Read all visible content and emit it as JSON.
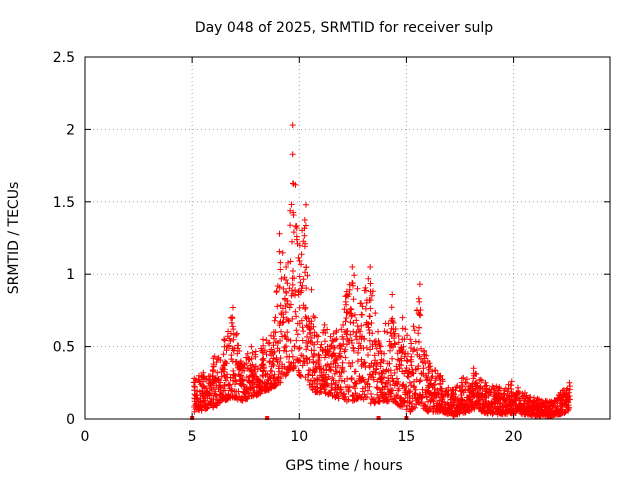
{
  "chart_data": {
    "type": "scatter",
    "title": "Day 048 of 2025, SRMTID for receiver sulp",
    "xlabel": "GPS time / hours",
    "ylabel": "SRMTID / TECUs",
    "xlim": [
      0,
      24.5
    ],
    "ylim": [
      0,
      2.5
    ],
    "xticks": [
      0,
      5,
      10,
      15,
      20
    ],
    "yticks": [
      0,
      0.5,
      1,
      1.5,
      2,
      2.5
    ],
    "xtick_labels": [
      "0",
      "5",
      "10",
      "15",
      "20"
    ],
    "ytick_labels": [
      "0",
      "0.5",
      "1",
      "1.5",
      "2",
      "2.5"
    ],
    "grid": true,
    "marker": "+",
    "color": "#ff0000",
    "zero_markers_x": [
      5.0,
      8.5,
      13.7,
      15.0
    ],
    "envelope": [
      {
        "x": 5.1,
        "lo": 0.05,
        "hi": 0.28
      },
      {
        "x": 5.5,
        "lo": 0.06,
        "hi": 0.32
      },
      {
        "x": 6.0,
        "lo": 0.08,
        "hi": 0.42
      },
      {
        "x": 6.5,
        "lo": 0.12,
        "hi": 0.55
      },
      {
        "x": 6.9,
        "lo": 0.15,
        "hi": 0.77
      },
      {
        "x": 7.3,
        "lo": 0.12,
        "hi": 0.4
      },
      {
        "x": 7.8,
        "lo": 0.15,
        "hi": 0.5
      },
      {
        "x": 8.3,
        "lo": 0.18,
        "hi": 0.55
      },
      {
        "x": 8.8,
        "lo": 0.22,
        "hi": 0.6
      },
      {
        "x": 9.1,
        "lo": 0.25,
        "hi": 1.28
      },
      {
        "x": 9.4,
        "lo": 0.3,
        "hi": 1.05
      },
      {
        "x": 9.7,
        "lo": 0.35,
        "hi": 2.03
      },
      {
        "x": 10.0,
        "lo": 0.3,
        "hi": 1.2
      },
      {
        "x": 10.3,
        "lo": 0.28,
        "hi": 1.48
      },
      {
        "x": 10.7,
        "lo": 0.18,
        "hi": 0.7
      },
      {
        "x": 11.2,
        "lo": 0.18,
        "hi": 0.65
      },
      {
        "x": 11.7,
        "lo": 0.15,
        "hi": 0.6
      },
      {
        "x": 12.2,
        "lo": 0.12,
        "hi": 0.88
      },
      {
        "x": 12.5,
        "lo": 0.12,
        "hi": 1.05
      },
      {
        "x": 12.9,
        "lo": 0.15,
        "hi": 0.8
      },
      {
        "x": 13.3,
        "lo": 0.1,
        "hi": 1.05
      },
      {
        "x": 13.8,
        "lo": 0.12,
        "hi": 0.5
      },
      {
        "x": 14.3,
        "lo": 0.12,
        "hi": 0.86
      },
      {
        "x": 14.8,
        "lo": 0.08,
        "hi": 0.7
      },
      {
        "x": 15.2,
        "lo": 0.05,
        "hi": 0.55
      },
      {
        "x": 15.6,
        "lo": 0.1,
        "hi": 0.93
      },
      {
        "x": 16.0,
        "lo": 0.05,
        "hi": 0.4
      },
      {
        "x": 16.6,
        "lo": 0.05,
        "hi": 0.3
      },
      {
        "x": 17.2,
        "lo": 0.02,
        "hi": 0.2
      },
      {
        "x": 17.6,
        "lo": 0.04,
        "hi": 0.28
      },
      {
        "x": 18.1,
        "lo": 0.06,
        "hi": 0.35
      },
      {
        "x": 18.7,
        "lo": 0.04,
        "hi": 0.25
      },
      {
        "x": 19.3,
        "lo": 0.03,
        "hi": 0.22
      },
      {
        "x": 19.9,
        "lo": 0.04,
        "hi": 0.26
      },
      {
        "x": 20.5,
        "lo": 0.03,
        "hi": 0.18
      },
      {
        "x": 21.1,
        "lo": 0.02,
        "hi": 0.14
      },
      {
        "x": 21.7,
        "lo": 0.02,
        "hi": 0.12
      },
      {
        "x": 22.2,
        "lo": 0.03,
        "hi": 0.18
      },
      {
        "x": 22.6,
        "lo": 0.06,
        "hi": 0.25
      }
    ],
    "density_per_hour": 120
  }
}
